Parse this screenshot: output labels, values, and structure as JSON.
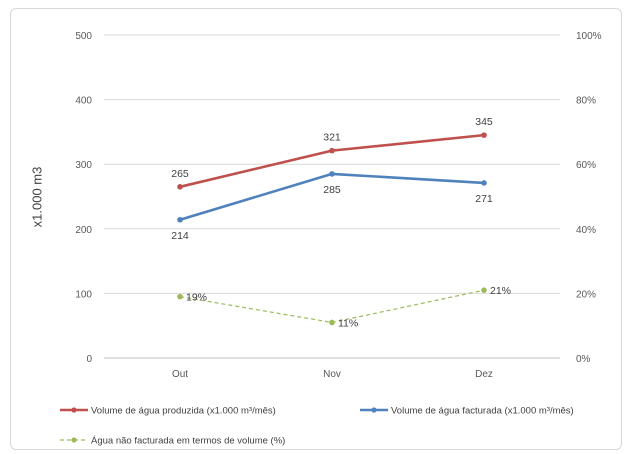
{
  "chart_data": {
    "type": "line",
    "categories": [
      "Out",
      "Nov",
      "Dez"
    ],
    "ylabel": "x1.000 m3",
    "ylim": [
      0,
      500
    ],
    "yticks": [
      0,
      100,
      200,
      300,
      400,
      500
    ],
    "y2lim": [
      0,
      100
    ],
    "y2ticks": [
      "0%",
      "20%",
      "40%",
      "60%",
      "80%",
      "100%"
    ],
    "grid": true,
    "legend_position": "bottom",
    "series": [
      {
        "name": "Volume de água produzida (x1.000 m³/mês)",
        "axis": "left",
        "values": [
          265,
          321,
          345
        ],
        "labels": [
          "265",
          "321",
          "345"
        ],
        "label_position": "above",
        "color": "#c0504d",
        "style": "solid"
      },
      {
        "name": "Volume de água facturada (x1.000 m³/mês)",
        "axis": "left",
        "values": [
          214,
          285,
          271
        ],
        "labels": [
          "214",
          "285",
          "271"
        ],
        "label_position": "below",
        "color": "#4f81bd",
        "style": "solid"
      },
      {
        "name": "Água não facturada em termos de volume (%)",
        "axis": "right",
        "values": [
          19,
          11,
          21
        ],
        "labels": [
          "19%",
          "11%",
          "21%"
        ],
        "label_position": "right",
        "color": "#9bbb59",
        "style": "dashed"
      }
    ]
  }
}
